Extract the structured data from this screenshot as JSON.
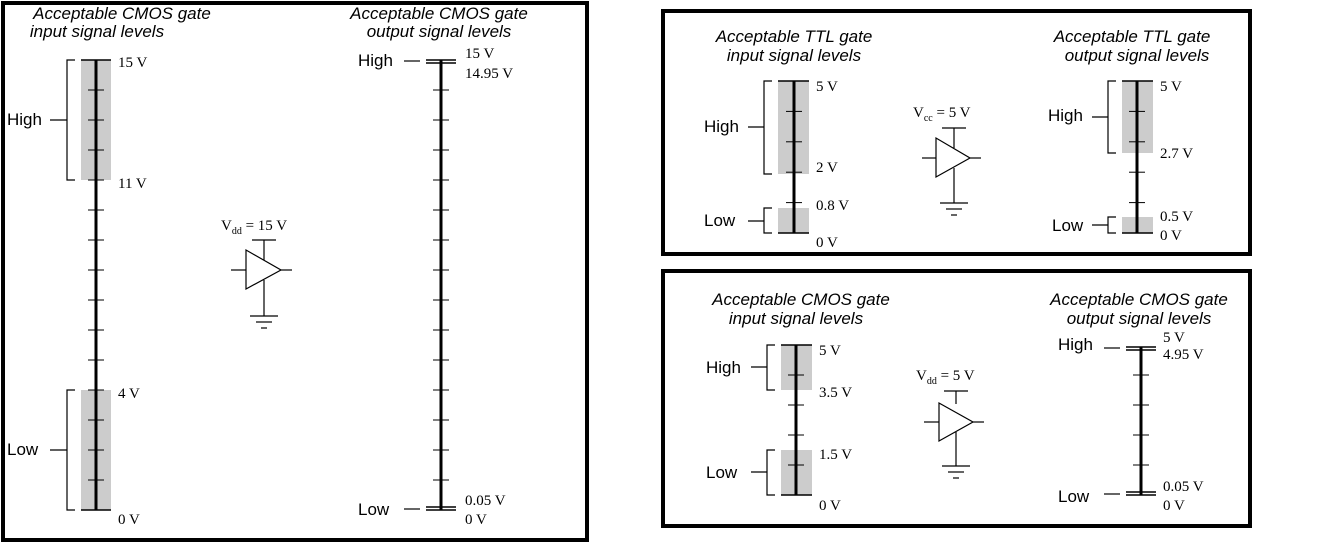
{
  "left_panel": {
    "input_title": [
      "Acceptable CMOS gate",
      "input signal levels"
    ],
    "output_title": [
      "Acceptable CMOS gate",
      "output signal levels"
    ],
    "input_labels": {
      "high": "High",
      "low": "Low",
      "v_top": "15 V",
      "v_high_min": "11 V",
      "v_low_max": "4 V",
      "v_bottom": "0 V"
    },
    "output_labels": {
      "high": "High",
      "low": "Low",
      "v_top": "15 V",
      "v_high_min": "14.95 V",
      "v_low_max": "0.05 V",
      "v_bottom": "0 V"
    },
    "supply": {
      "symbol": "V",
      "subscript": "dd",
      "value": " = 15 V"
    }
  },
  "ttl_panel": {
    "input_title": [
      "Acceptable TTL gate",
      "input signal levels"
    ],
    "output_title": [
      "Acceptable TTL gate",
      "output signal levels"
    ],
    "input_labels": {
      "high": "High",
      "low": "Low",
      "v_top": "5 V",
      "v_high_min": "2 V",
      "v_low_max": "0.8 V",
      "v_bottom": "0 V"
    },
    "output_labels": {
      "high": "High",
      "low": "Low",
      "v_top": "5 V",
      "v_high_min": "2.7 V",
      "v_low_max": "0.5 V",
      "v_bottom": "0 V"
    },
    "supply": {
      "symbol": "V",
      "subscript": "cc",
      "value": " = 5 V"
    }
  },
  "cmos5_panel": {
    "input_title": [
      "Acceptable CMOS gate",
      "input signal levels"
    ],
    "output_title": [
      "Acceptable CMOS gate",
      "output signal levels"
    ],
    "input_labels": {
      "high": "High",
      "low": "Low",
      "v_top": "5 V",
      "v_high_min": "3.5 V",
      "v_low_max": "1.5 V",
      "v_bottom": "0 V"
    },
    "output_labels": {
      "high": "High",
      "low": "Low",
      "v_top": "5 V",
      "v_high_min": "4.95 V",
      "v_low_max": "0.05 V",
      "v_bottom": "0 V"
    },
    "supply": {
      "symbol": "V",
      "subscript": "dd",
      "value": " = 5 V"
    }
  },
  "colors": {
    "band_fill": "#cccccc",
    "line": "#000000"
  }
}
